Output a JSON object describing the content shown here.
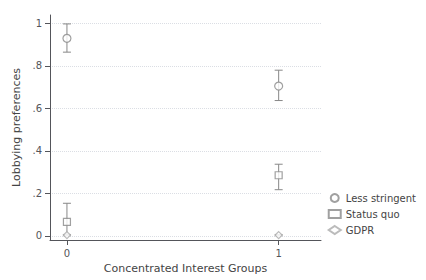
{
  "chart_data": {
    "type": "scatter",
    "xlabel": "Concentrated Interest Groups",
    "ylabel": "Lobbying preferences",
    "xlim": [
      -0.08,
      1.2
    ],
    "ylim": [
      -0.02,
      1.04
    ],
    "xticks": [
      0,
      1
    ],
    "yticks": [
      0,
      {
        "value": 0.2,
        "label": ".2"
      },
      {
        "value": 0.4,
        "label": ".4"
      },
      {
        "value": 0.6,
        "label": ".6"
      },
      {
        "value": 0.8,
        "label": ".8"
      },
      1
    ],
    "grid": true,
    "legend": "lower right",
    "series": [
      {
        "name": "Less stringent",
        "x": [
          0,
          1
        ],
        "values": [
          0.93,
          0.705
        ],
        "yerr_low": [
          0.065,
          0.068
        ],
        "yerr_high": [
          0.068,
          0.075
        ],
        "marker": "circle",
        "color": "#888888"
      },
      {
        "name": "Status quo",
        "x": [
          0,
          1
        ],
        "values": [
          0.065,
          0.285
        ],
        "yerr_low": [
          0.06,
          0.068
        ],
        "yerr_high": [
          0.088,
          0.052
        ],
        "marker": "square",
        "color": "#888888"
      },
      {
        "name": "GDPR",
        "x": [
          0,
          1
        ],
        "values": [
          0.003,
          0.003
        ],
        "yerr_low": [
          0.003,
          0.003
        ],
        "yerr_high": [
          0.003,
          0.003
        ],
        "marker": "diamond",
        "color": "#aaaaaa"
      }
    ]
  }
}
